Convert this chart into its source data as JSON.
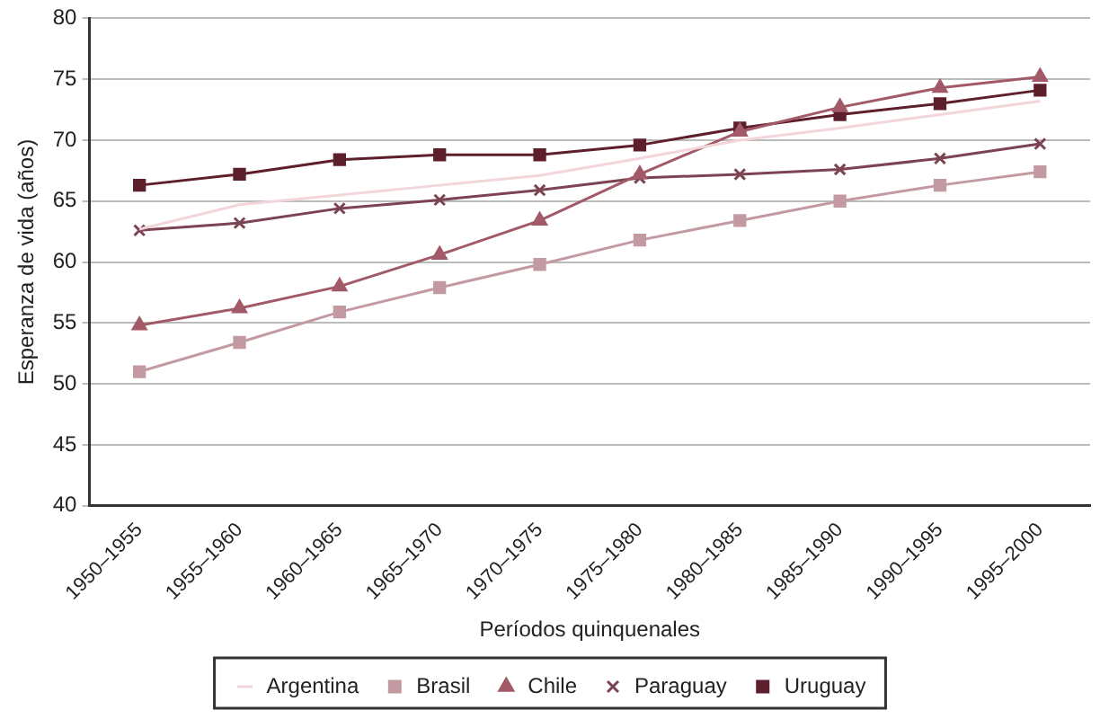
{
  "chart_data": {
    "type": "line",
    "xlabel": "Períodos quinquenales",
    "ylabel": "Esperanza de vida (años)",
    "categories": [
      "1950–1955",
      "1955–1960",
      "1960–1965",
      "1965–1970",
      "1970–1975",
      "1975–1980",
      "1980–1985",
      "1985–1990",
      "1990–1995",
      "1995–2000"
    ],
    "series": [
      {
        "name": "Argentina",
        "color": "#f2d6da",
        "marker": "none",
        "values": [
          62.7,
          64.7,
          65.5,
          66.3,
          67.1,
          68.5,
          70.0,
          71.0,
          72.1,
          73.2
        ]
      },
      {
        "name": "Brasil",
        "color": "#c49aa2",
        "marker": "square",
        "values": [
          51.0,
          53.4,
          55.9,
          57.9,
          59.8,
          61.8,
          63.4,
          65.0,
          66.3,
          67.4
        ]
      },
      {
        "name": "Chile",
        "color": "#a35a68",
        "marker": "triangle",
        "values": [
          54.8,
          56.2,
          58.0,
          60.6,
          63.4,
          67.2,
          70.7,
          72.7,
          74.3,
          75.2
        ]
      },
      {
        "name": "Paraguay",
        "color": "#7c4452",
        "marker": "cross",
        "values": [
          62.6,
          63.2,
          64.4,
          65.1,
          65.9,
          66.9,
          67.2,
          67.6,
          68.5,
          69.7
        ]
      },
      {
        "name": "Uruguay",
        "color": "#5e1f2c",
        "marker": "square",
        "values": [
          66.3,
          67.2,
          68.4,
          68.8,
          68.8,
          69.6,
          71.0,
          72.1,
          73.0,
          74.1
        ]
      }
    ],
    "ylim": [
      40,
      80
    ],
    "yticks": [
      40,
      45,
      50,
      55,
      60,
      65,
      70,
      75,
      80
    ],
    "grid": "y",
    "legend": "bottom",
    "line_style": "solid"
  }
}
